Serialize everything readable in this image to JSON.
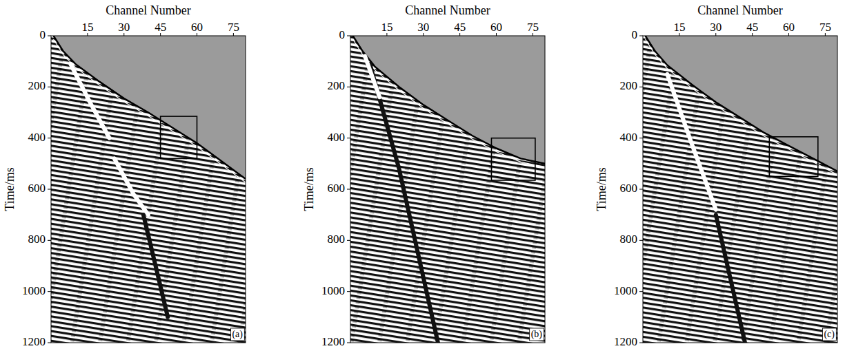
{
  "chart_data": [
    {
      "type": "line",
      "panel": "(a)",
      "x_label": "Channel Number",
      "y_label": "Time/ms",
      "xlim": [
        0,
        80
      ],
      "ylim": [
        0,
        1200
      ],
      "xticks": [
        15,
        30,
        45,
        60,
        75
      ],
      "yticks": [
        0,
        200,
        400,
        600,
        800,
        1000,
        1200
      ],
      "box": {
        "x": [
          45,
          60
        ],
        "y": [
          315,
          480
        ]
      },
      "series": [
        {
          "type": "area",
          "color": "#000000",
          "x": [
            1,
            5,
            10,
            20,
            30,
            40,
            50,
            60,
            70,
            80
          ],
          "values": [
            0,
            60,
            110,
            180,
            245,
            300,
            360,
            420,
            490,
            560
          ]
        },
        {
          "type": "line",
          "color": "#ffffff",
          "x": [
            8,
            16,
            24
          ],
          "values": [
            110,
            260,
            400
          ]
        },
        {
          "type": "line",
          "color": "#ffffff",
          "x": [
            26,
            34,
            40
          ],
          "values": [
            480,
            620,
            700
          ]
        },
        {
          "type": "line",
          "color": "#111111",
          "x": [
            38,
            43,
            48
          ],
          "values": [
            700,
            900,
            1100
          ]
        }
      ]
    },
    {
      "type": "line",
      "panel": "(b)",
      "x_label": "Channel Number",
      "y_label": "Time/ms",
      "xlim": [
        0,
        80
      ],
      "ylim": [
        0,
        1200
      ],
      "xticks": [
        15,
        30,
        45,
        60,
        75
      ],
      "yticks": [
        0,
        200,
        400,
        600,
        800,
        1000,
        1200
      ],
      "box": {
        "x": [
          58,
          76
        ],
        "y": [
          400,
          565
        ]
      },
      "series": [
        {
          "type": "area",
          "color": "#000000",
          "x": [
            1,
            5,
            10,
            20,
            30,
            40,
            50,
            60,
            70,
            80
          ],
          "values": [
            0,
            60,
            120,
            200,
            270,
            330,
            390,
            440,
            480,
            500
          ]
        },
        {
          "type": "line",
          "color": "#111111",
          "x": [
            8,
            20,
            36
          ],
          "values": [
            110,
            520,
            1200
          ]
        },
        {
          "type": "line",
          "color": "#ffffff",
          "x": [
            6,
            12
          ],
          "values": [
            80,
            240
          ]
        }
      ]
    },
    {
      "type": "line",
      "panel": "(c)",
      "x_label": "Channel Number",
      "y_label": "Time/ms",
      "xlim": [
        0,
        80
      ],
      "ylim": [
        0,
        1200
      ],
      "xticks": [
        15,
        30,
        45,
        60,
        75
      ],
      "yticks": [
        0,
        200,
        400,
        600,
        800,
        1000,
        1200
      ],
      "box": {
        "x": [
          52,
          72
        ],
        "y": [
          395,
          550
        ]
      },
      "series": [
        {
          "type": "area",
          "color": "#000000",
          "x": [
            1,
            5,
            10,
            20,
            30,
            40,
            50,
            60,
            70,
            80
          ],
          "values": [
            0,
            60,
            115,
            190,
            260,
            320,
            380,
            430,
            480,
            530
          ]
        },
        {
          "type": "line",
          "color": "#ffffff",
          "x": [
            10,
            20,
            30
          ],
          "values": [
            150,
            420,
            680
          ]
        },
        {
          "type": "line",
          "color": "#111111",
          "x": [
            30,
            36,
            42
          ],
          "values": [
            700,
            950,
            1200
          ]
        }
      ]
    }
  ]
}
